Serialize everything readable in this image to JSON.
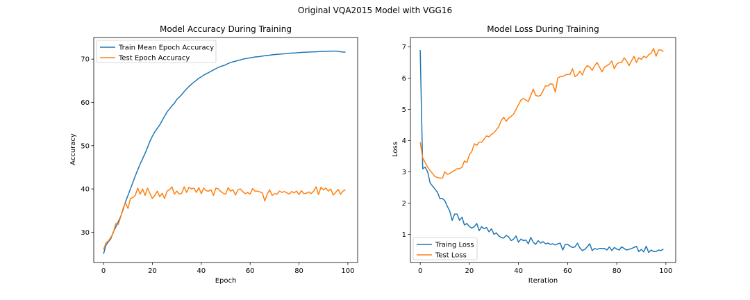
{
  "suptitle": "Original VQA2015 Model with VGG16",
  "colors": {
    "blue": "#1f77b4",
    "orange": "#ff7f0e"
  },
  "chart_data": [
    {
      "type": "line",
      "title": "Model Accuracy During Training",
      "xlabel": "Epoch",
      "ylabel": "Accuracy",
      "xlim": [
        -4,
        104
      ],
      "ylim": [
        23,
        75
      ],
      "xticks": [
        0,
        20,
        40,
        60,
        80,
        100
      ],
      "yticks": [
        30,
        40,
        50,
        60,
        70
      ],
      "legend_position": "upper-left",
      "grid": false,
      "series": [
        {
          "name": "Train Mean Epoch Accuracy",
          "color": "#1f77b4",
          "x": [
            0,
            1,
            2,
            3,
            4,
            5,
            6,
            7,
            8,
            9,
            10,
            11,
            12,
            13,
            14,
            15,
            16,
            17,
            18,
            19,
            20,
            21,
            22,
            23,
            24,
            25,
            26,
            27,
            28,
            29,
            30,
            31,
            32,
            33,
            34,
            35,
            36,
            37,
            38,
            39,
            40,
            41,
            42,
            43,
            44,
            45,
            46,
            47,
            48,
            49,
            50,
            51,
            52,
            53,
            54,
            55,
            56,
            57,
            58,
            59,
            60,
            61,
            62,
            63,
            64,
            65,
            66,
            67,
            68,
            69,
            70,
            71,
            72,
            73,
            74,
            75,
            76,
            77,
            78,
            79,
            80,
            81,
            82,
            83,
            84,
            85,
            86,
            87,
            88,
            89,
            90,
            91,
            92,
            93,
            94,
            95,
            96,
            97,
            98,
            99
          ],
          "y": [
            25,
            27,
            27.8,
            28.5,
            30,
            31.2,
            32.4,
            33.6,
            35.2,
            37,
            38.5,
            40,
            41.5,
            43,
            44.4,
            45.8,
            47,
            48.2,
            49.6,
            51,
            52.2,
            53.2,
            54,
            54.8,
            55.8,
            56.8,
            57.8,
            58.5,
            59.2,
            59.8,
            60.7,
            61.2,
            61.8,
            62.5,
            63.1,
            63.7,
            64.2,
            64.7,
            65.1,
            65.6,
            65.9,
            66.3,
            66.6,
            66.9,
            67.2,
            67.5,
            67.8,
            68.1,
            68.3,
            68.5,
            68.7,
            69,
            69.2,
            69.4,
            69.5,
            69.7,
            69.8,
            70,
            70.1,
            70.2,
            70.3,
            70.4,
            70.5,
            70.55,
            70.6,
            70.7,
            70.8,
            70.85,
            70.9,
            71,
            71.05,
            71.1,
            71.15,
            71.2,
            71.25,
            71.3,
            71.35,
            71.4,
            71.4,
            71.45,
            71.5,
            71.55,
            71.6,
            71.6,
            71.65,
            71.65,
            71.7,
            71.7,
            71.75,
            71.75,
            71.8,
            71.8,
            71.8,
            71.85,
            71.85,
            71.85,
            71.8,
            71.7,
            71.65,
            71.6
          ]
        },
        {
          "name": "Test Epoch Accuracy",
          "color": "#ff7f0e",
          "x": [
            0,
            1,
            2,
            3,
            4,
            5,
            6,
            7,
            8,
            9,
            10,
            11,
            12,
            13,
            14,
            15,
            16,
            17,
            18,
            19,
            20,
            21,
            22,
            23,
            24,
            25,
            26,
            27,
            28,
            29,
            30,
            31,
            32,
            33,
            34,
            35,
            36,
            37,
            38,
            39,
            40,
            41,
            42,
            43,
            44,
            45,
            46,
            47,
            48,
            49,
            50,
            51,
            52,
            53,
            54,
            55,
            56,
            57,
            58,
            59,
            60,
            61,
            62,
            63,
            64,
            65,
            66,
            67,
            68,
            69,
            70,
            71,
            72,
            73,
            74,
            75,
            76,
            77,
            78,
            79,
            80,
            81,
            82,
            83,
            84,
            85,
            86,
            87,
            88,
            89,
            90,
            91,
            92,
            93,
            94,
            95,
            96,
            97,
            98,
            99
          ],
          "y": [
            26,
            27.5,
            28,
            28.8,
            29.8,
            32,
            31.8,
            33.5,
            35.5,
            36.8,
            35.5,
            37.8,
            38,
            38.5,
            40.2,
            38.8,
            40,
            38.5,
            40.2,
            39,
            37.8,
            38.5,
            39.5,
            38.2,
            39,
            37.8,
            39.5,
            39.8,
            40.5,
            38.8,
            39.5,
            38.8,
            39,
            40.5,
            39.2,
            40.4,
            40,
            40.2,
            39.2,
            40.3,
            38.9,
            40.2,
            39.6,
            39.5,
            39.8,
            38.5,
            40.2,
            40,
            39.4,
            39,
            38.8,
            40.3,
            39.5,
            39.8,
            38.6,
            39.8,
            40,
            39.4,
            38.9,
            39.2,
            38.8,
            40.1,
            39.5,
            39.5,
            39.3,
            39.1,
            37.2,
            38.8,
            39.8,
            38.5,
            38.9,
            38.8,
            39.5,
            39.2,
            39.4,
            39.1,
            38.8,
            39.4,
            39.1,
            39.5,
            38.7,
            39.6,
            38.9,
            39,
            39.3,
            38.9,
            39.5,
            40.5,
            38.7,
            40.4,
            39.8,
            40.2,
            39.5,
            40,
            38.6,
            39.2,
            39.9,
            38.8,
            39.5,
            39.8
          ]
        }
      ]
    },
    {
      "type": "line",
      "title": "Model Loss During Training",
      "xlabel": "Iteration",
      "ylabel": "Loss",
      "xlim": [
        -4,
        104
      ],
      "ylim": [
        0.1,
        7.3
      ],
      "xticks": [
        0,
        20,
        40,
        60,
        80,
        100
      ],
      "yticks": [
        1,
        2,
        3,
        4,
        5,
        6,
        7
      ],
      "legend_position": "lower-left",
      "grid": false,
      "series": [
        {
          "name": "Traing Loss",
          "color": "#1f77b4",
          "x": [
            0,
            1,
            2,
            3,
            4,
            5,
            6,
            7,
            8,
            9,
            10,
            11,
            12,
            13,
            14,
            15,
            16,
            17,
            18,
            19,
            20,
            21,
            22,
            23,
            24,
            25,
            26,
            27,
            28,
            29,
            30,
            31,
            32,
            33,
            34,
            35,
            36,
            37,
            38,
            39,
            40,
            41,
            42,
            43,
            44,
            45,
            46,
            47,
            48,
            49,
            50,
            51,
            52,
            53,
            54,
            55,
            56,
            57,
            58,
            59,
            60,
            61,
            62,
            63,
            64,
            65,
            66,
            67,
            68,
            69,
            70,
            71,
            72,
            73,
            74,
            75,
            76,
            77,
            78,
            79,
            80,
            81,
            82,
            83,
            84,
            85,
            86,
            87,
            88,
            89,
            90,
            91,
            92,
            93,
            94,
            95,
            96,
            97,
            98,
            99
          ],
          "y": [
            6.9,
            3.1,
            3.15,
            3.0,
            2.65,
            2.55,
            2.45,
            2.35,
            2.15,
            2.15,
            2.08,
            1.9,
            1.75,
            1.45,
            1.65,
            1.65,
            1.45,
            1.55,
            1.3,
            1.35,
            1.25,
            1.2,
            1.25,
            1.35,
            1.12,
            1.25,
            1.18,
            1.22,
            1.08,
            1.18,
            1.0,
            1.05,
            0.95,
            0.9,
            0.88,
            0.97,
            0.92,
            0.8,
            0.85,
            0.95,
            0.75,
            0.85,
            0.8,
            0.82,
            0.7,
            0.9,
            0.75,
            0.68,
            0.8,
            0.72,
            0.77,
            0.7,
            0.72,
            0.68,
            0.7,
            0.66,
            0.7,
            0.72,
            0.5,
            0.67,
            0.68,
            0.62,
            0.58,
            0.6,
            0.72,
            0.56,
            0.48,
            0.52,
            0.6,
            0.7,
            0.48,
            0.55,
            0.52,
            0.55,
            0.55,
            0.55,
            0.5,
            0.6,
            0.48,
            0.58,
            0.53,
            0.5,
            0.6,
            0.55,
            0.5,
            0.52,
            0.55,
            0.58,
            0.62,
            0.45,
            0.52,
            0.44,
            0.62,
            0.42,
            0.5,
            0.45,
            0.45,
            0.5,
            0.48,
            0.53
          ]
        },
        {
          "name": "Test Loss",
          "color": "#ff7f0e",
          "x": [
            0,
            1,
            2,
            3,
            4,
            5,
            6,
            7,
            8,
            9,
            10,
            11,
            12,
            13,
            14,
            15,
            16,
            17,
            18,
            19,
            20,
            21,
            22,
            23,
            24,
            25,
            26,
            27,
            28,
            29,
            30,
            31,
            32,
            33,
            34,
            35,
            36,
            37,
            38,
            39,
            40,
            41,
            42,
            43,
            44,
            45,
            46,
            47,
            48,
            49,
            50,
            51,
            52,
            53,
            54,
            55,
            56,
            57,
            58,
            59,
            60,
            61,
            62,
            63,
            64,
            65,
            66,
            67,
            68,
            69,
            70,
            71,
            72,
            73,
            74,
            75,
            76,
            77,
            78,
            79,
            80,
            81,
            82,
            83,
            84,
            85,
            86,
            87,
            88,
            89,
            90,
            91,
            92,
            93,
            94,
            95,
            96,
            97,
            98,
            99
          ],
          "y": [
            3.95,
            3.45,
            3.3,
            3.15,
            3.05,
            2.95,
            2.85,
            2.82,
            2.8,
            2.8,
            3.0,
            2.92,
            2.95,
            3.0,
            3.05,
            3.1,
            3.1,
            3.15,
            3.35,
            3.3,
            3.55,
            3.65,
            3.9,
            3.85,
            3.95,
            3.95,
            4.05,
            4.15,
            4.12,
            4.2,
            4.25,
            4.35,
            4.45,
            4.65,
            4.75,
            4.62,
            4.72,
            4.78,
            4.85,
            5.0,
            5.15,
            5.3,
            5.35,
            5.3,
            5.25,
            5.45,
            5.65,
            5.45,
            5.42,
            5.45,
            5.6,
            5.75,
            5.75,
            5.82,
            5.8,
            5.55,
            6.0,
            6.05,
            6.05,
            6.1,
            6.12,
            6.12,
            6.3,
            6.05,
            6.1,
            6.22,
            6.1,
            6.3,
            6.4,
            6.35,
            6.25,
            6.4,
            6.5,
            6.35,
            6.2,
            6.35,
            6.4,
            6.45,
            6.55,
            6.3,
            6.45,
            6.5,
            6.5,
            6.65,
            6.55,
            6.4,
            6.55,
            6.7,
            6.5,
            6.65,
            6.6,
            6.7,
            6.65,
            6.75,
            6.8,
            6.95,
            6.7,
            6.9,
            6.9,
            6.85
          ]
        }
      ]
    }
  ]
}
